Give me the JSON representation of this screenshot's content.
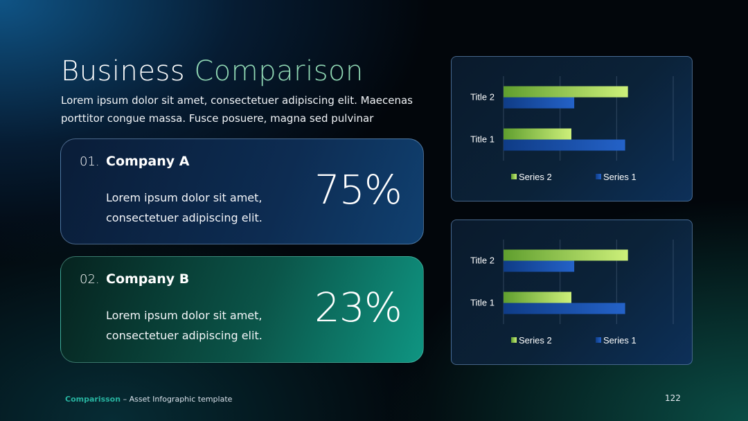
{
  "header": {
    "title_main": "Business",
    "title_accent": "Comparison",
    "subtitle": "Lorem ipsum dolor sit amet, consectetuer adipiscing elit. Maecenas porttitor congue massa. Fusce posuere, magna sed pulvinar"
  },
  "companies": [
    {
      "number": "01.",
      "name": "Company A",
      "description": "Lorem ipsum dolor sit amet, consectetuer adipiscing elit.",
      "percent": "75%"
    },
    {
      "number": "02.",
      "name": "Company B",
      "description": "Lorem ipsum dolor sit amet, consectetuer adipiscing elit.",
      "percent": "23%"
    }
  ],
  "chart_data": [
    {
      "type": "bar",
      "orientation": "horizontal",
      "categories": [
        "Title 1",
        "Title 2"
      ],
      "series": [
        {
          "name": "Series 2",
          "values": [
            2.4,
            4.4
          ],
          "color": "#a6d96a"
        },
        {
          "name": "Series 1",
          "values": [
            4.3,
            2.5
          ],
          "color": "#1d5bb8"
        }
      ],
      "xlim": [
        0,
        6
      ],
      "grid": true,
      "legend": "bottom",
      "legend_order": [
        "Series 2",
        "Series 1"
      ]
    },
    {
      "type": "bar",
      "orientation": "horizontal",
      "categories": [
        "Title 1",
        "Title 2"
      ],
      "series": [
        {
          "name": "Series 2",
          "values": [
            2.4,
            4.4
          ],
          "color": "#a6d96a"
        },
        {
          "name": "Series 1",
          "values": [
            4.3,
            2.5
          ],
          "color": "#1d5bb8"
        }
      ],
      "xlim": [
        0,
        6
      ],
      "grid": true,
      "legend": "bottom",
      "legend_order": [
        "Series 2",
        "Series 1"
      ]
    }
  ],
  "footer": {
    "brand": "Comparisson",
    "text": " – Asset Infographic  template",
    "page_number": "122"
  }
}
